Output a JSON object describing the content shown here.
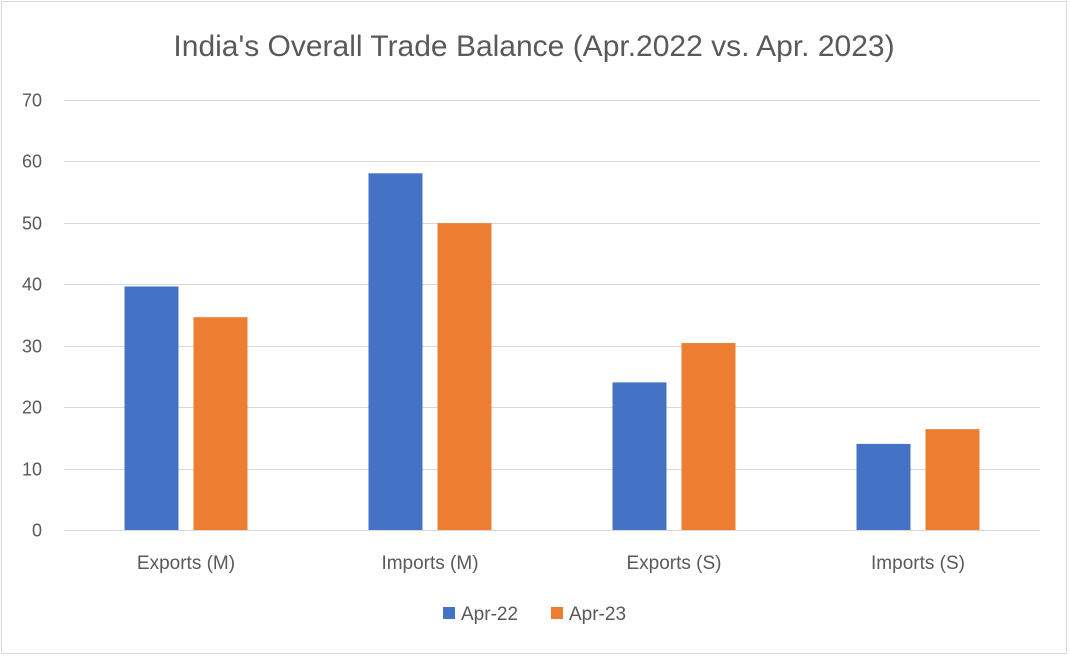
{
  "chart_data": {
    "type": "bar",
    "title": "India's Overall Trade Balance (Apr.2022 vs. Apr. 2023)",
    "xlabel": "",
    "ylabel": "",
    "categories": [
      "Exports (M)",
      "Imports (M)",
      "Exports (S)",
      "Imports (S)"
    ],
    "series": [
      {
        "name": "Apr-22",
        "color": "#4472c4",
        "values": [
          39.6,
          58.0,
          24.0,
          14.0
        ]
      },
      {
        "name": "Apr-23",
        "color": "#ed7d31",
        "values": [
          34.6,
          49.9,
          30.4,
          16.4
        ]
      }
    ],
    "ylim": [
      0,
      70
    ],
    "yticks": [
      0,
      10,
      20,
      30,
      40,
      50,
      60,
      70
    ],
    "grid": true,
    "legend_position": "bottom"
  }
}
